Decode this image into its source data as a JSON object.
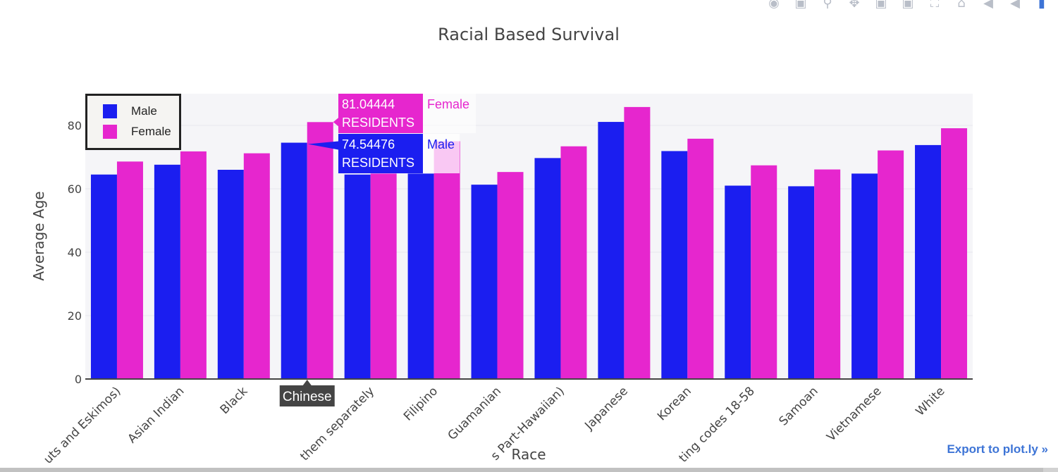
{
  "window": {
    "modebar_icons": [
      "camera-icon",
      "save-icon",
      "zoom-icon",
      "pan-icon",
      "zoom-in-icon",
      "zoom-out-icon",
      "autoscale-icon",
      "home-icon",
      "spike-icon",
      "compare-icon",
      "hover-closest-icon"
    ]
  },
  "chart_data": {
    "type": "bar",
    "title": "Racial Based Survival",
    "xlabel": "Race",
    "ylabel": "Average Age",
    "ylim": [
      0,
      90
    ],
    "yticks": [
      0,
      20,
      40,
      60,
      80
    ],
    "categories": [
      "uts and Eskimos)",
      "Asian Indian",
      "Black",
      "Chi",
      "them separately",
      "Filipino",
      "Guamanian",
      "s Part-Hawaiian)",
      "Japanese",
      "Korean",
      "ting codes 18-58",
      "Samoan",
      "Vietnamese",
      "White"
    ],
    "series": [
      {
        "name": "Male",
        "color": "#1b1ef0",
        "values": [
          64.5,
          67.6,
          66.0,
          74.54476,
          64.5,
          64.8,
          61.3,
          69.7,
          81.1,
          71.9,
          61.0,
          60.8,
          64.8,
          73.8
        ]
      },
      {
        "name": "Female",
        "color": "#e626ce",
        "values": [
          68.6,
          71.8,
          71.2,
          81.04444,
          64.8,
          75.0,
          65.3,
          73.4,
          85.8,
          75.8,
          67.4,
          66.1,
          72.1,
          79.1
        ]
      }
    ],
    "grid": true,
    "legend_position": "top-left",
    "hover": {
      "category_label": "Chinese",
      "female_value": "81.04444",
      "male_value": "74.54476",
      "text": "RESIDENTS",
      "female_name": "Female",
      "male_name": "Male"
    }
  },
  "footer": {
    "export_label": "Export to plot.ly »"
  }
}
